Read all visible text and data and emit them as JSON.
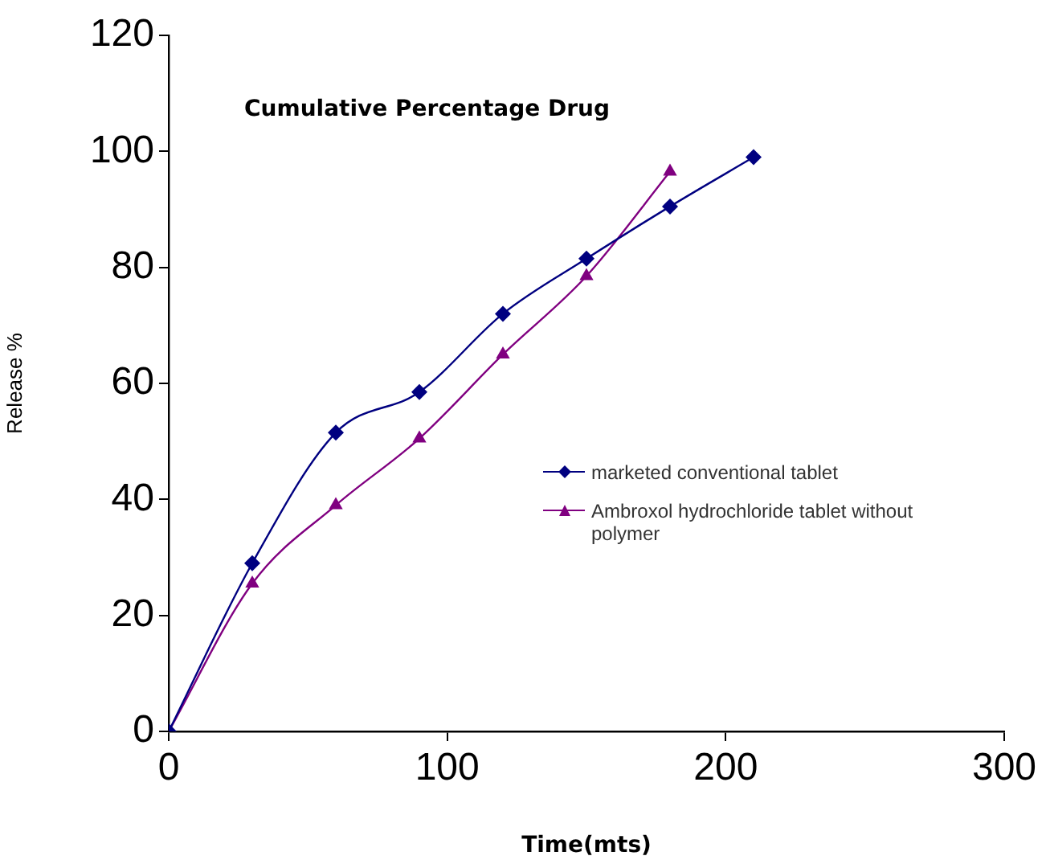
{
  "chart_data": {
    "type": "line",
    "title": "Cumulative Percentage Drug",
    "xlabel": "Time(mts)",
    "ylabel": "Release %",
    "xlim": [
      0,
      300
    ],
    "xticks": [
      0,
      100,
      200,
      300
    ],
    "ylim": [
      0,
      120
    ],
    "yticks": [
      0,
      20,
      40,
      60,
      80,
      100,
      120
    ],
    "grid": false,
    "legend": "right",
    "series": [
      {
        "name": "marketed conventional tablet",
        "color": "#000080",
        "marker": "diamond",
        "x": [
          0,
          30,
          60,
          90,
          120,
          150,
          180,
          210
        ],
        "values": [
          0,
          29,
          51.5,
          58.5,
          72,
          81.5,
          90.5,
          99
        ]
      },
      {
        "name": "Ambroxol hydrochloride tablet without polymer",
        "color": "#800080",
        "marker": "triangle",
        "x": [
          0,
          30,
          60,
          90,
          120,
          150,
          180
        ],
        "values": [
          0,
          25.5,
          39,
          50.5,
          65,
          78.5,
          96.5
        ]
      }
    ]
  }
}
